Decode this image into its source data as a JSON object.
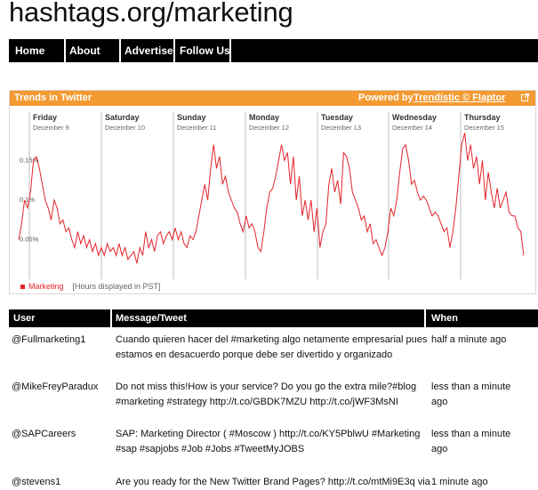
{
  "site": {
    "title": "hashtags.org/marketing"
  },
  "nav": {
    "items": [
      "Home",
      "About",
      "Advertise",
      "Follow Us"
    ]
  },
  "widget": {
    "title": "Trends in Twitter",
    "powered_prefix": "Powered by",
    "powered_link": "Trendistic © Flaptor",
    "link_icon": "external-link-icon",
    "accent_color": "#f39a32"
  },
  "chart_data": {
    "type": "line",
    "days": [
      {
        "name": "Friday",
        "date": "December 9"
      },
      {
        "name": "Saturday",
        "date": "December 10"
      },
      {
        "name": "Sunday",
        "date": "December 11"
      },
      {
        "name": "Monday",
        "date": "December 12"
      },
      {
        "name": "Tuesday",
        "date": "December 13"
      },
      {
        "name": "Wednesday",
        "date": "December 14"
      },
      {
        "name": "Thursday",
        "date": "December 15"
      }
    ],
    "yticks": [
      "0.05%",
      "0.1%",
      "0.15%"
    ],
    "ytick_values": [
      0.05,
      0.1,
      0.15
    ],
    "ylim": [
      0,
      0.2
    ],
    "series": [
      {
        "name": "Marketing",
        "color": "#e4242b",
        "values": [
          0.05,
          0.07,
          0.1,
          0.09,
          0.11,
          0.15,
          0.155,
          0.14,
          0.12,
          0.1,
          0.09,
          0.075,
          0.1,
          0.09,
          0.07,
          0.075,
          0.06,
          0.065,
          0.05,
          0.04,
          0.06,
          0.045,
          0.055,
          0.04,
          0.05,
          0.035,
          0.045,
          0.03,
          0.04,
          0.03,
          0.045,
          0.035,
          0.04,
          0.03,
          0.045,
          0.03,
          0.04,
          0.025,
          0.03,
          0.035,
          0.02,
          0.04,
          0.03,
          0.06,
          0.04,
          0.05,
          0.035,
          0.055,
          0.06,
          0.045,
          0.055,
          0.06,
          0.05,
          0.065,
          0.05,
          0.06,
          0.045,
          0.04,
          0.055,
          0.05,
          0.06,
          0.08,
          0.1,
          0.12,
          0.1,
          0.14,
          0.17,
          0.14,
          0.155,
          0.12,
          0.13,
          0.11,
          0.1,
          0.09,
          0.085,
          0.07,
          0.06,
          0.08,
          0.065,
          0.07,
          0.06,
          0.04,
          0.035,
          0.06,
          0.09,
          0.11,
          0.115,
          0.13,
          0.15,
          0.17,
          0.15,
          0.16,
          0.12,
          0.155,
          0.1,
          0.13,
          0.08,
          0.1,
          0.075,
          0.1,
          0.06,
          0.09,
          0.04,
          0.06,
          0.07,
          0.12,
          0.14,
          0.11,
          0.125,
          0.095,
          0.16,
          0.155,
          0.14,
          0.11,
          0.1,
          0.09,
          0.075,
          0.08,
          0.06,
          0.07,
          0.045,
          0.05,
          0.04,
          0.03,
          0.04,
          0.06,
          0.09,
          0.08,
          0.1,
          0.135,
          0.165,
          0.17,
          0.15,
          0.12,
          0.125,
          0.11,
          0.1,
          0.105,
          0.1,
          0.09,
          0.08,
          0.085,
          0.08,
          0.07,
          0.06,
          0.065,
          0.04,
          0.06,
          0.09,
          0.13,
          0.17,
          0.185,
          0.15,
          0.17,
          0.14,
          0.155,
          0.12,
          0.15,
          0.1,
          0.135,
          0.11,
          0.09,
          0.115,
          0.09,
          0.1,
          0.11,
          0.085,
          0.08,
          0.08,
          0.065,
          0.06,
          0.03
        ]
      }
    ],
    "legend_note": "[Hours displayed in PST]"
  },
  "table": {
    "headers": [
      "User",
      "Message/Tweet",
      "When"
    ],
    "rows": [
      {
        "user": "@Fullmarketing1",
        "message_lines": [
          "Cuando quieren hacer del #marketing algo netamente empresarial pues",
          "estamos en desacuerdo porque debe ser divertido y organizado"
        ],
        "when_lines": [
          "half a minute ago"
        ]
      },
      {
        "user": "@MikeFreyParadux",
        "message_lines": [
          "Do not miss this!How is your service? Do you go the extra mile?#blog",
          "#marketing #strategy http://t.co/GBDK7MZU http://t.co/jWF3MsNI"
        ],
        "when_lines": [
          "less than a minute",
          "ago"
        ]
      },
      {
        "user": "@SAPCareers",
        "message_lines": [
          "SAP: Marketing Director ( #Moscow ) http://t.co/KY5PblwU #Marketing",
          "#sap #sapjobs #Job #Jobs #TweetMyJOBS"
        ],
        "when_lines": [
          "less than a minute",
          "ago"
        ]
      },
      {
        "user": "@stevens1",
        "message_lines": [
          "Are you ready for the New Twitter Brand Pages? http://t.co/mtMi9E3q via"
        ],
        "when_lines": [
          "1 minute ago"
        ]
      }
    ]
  }
}
